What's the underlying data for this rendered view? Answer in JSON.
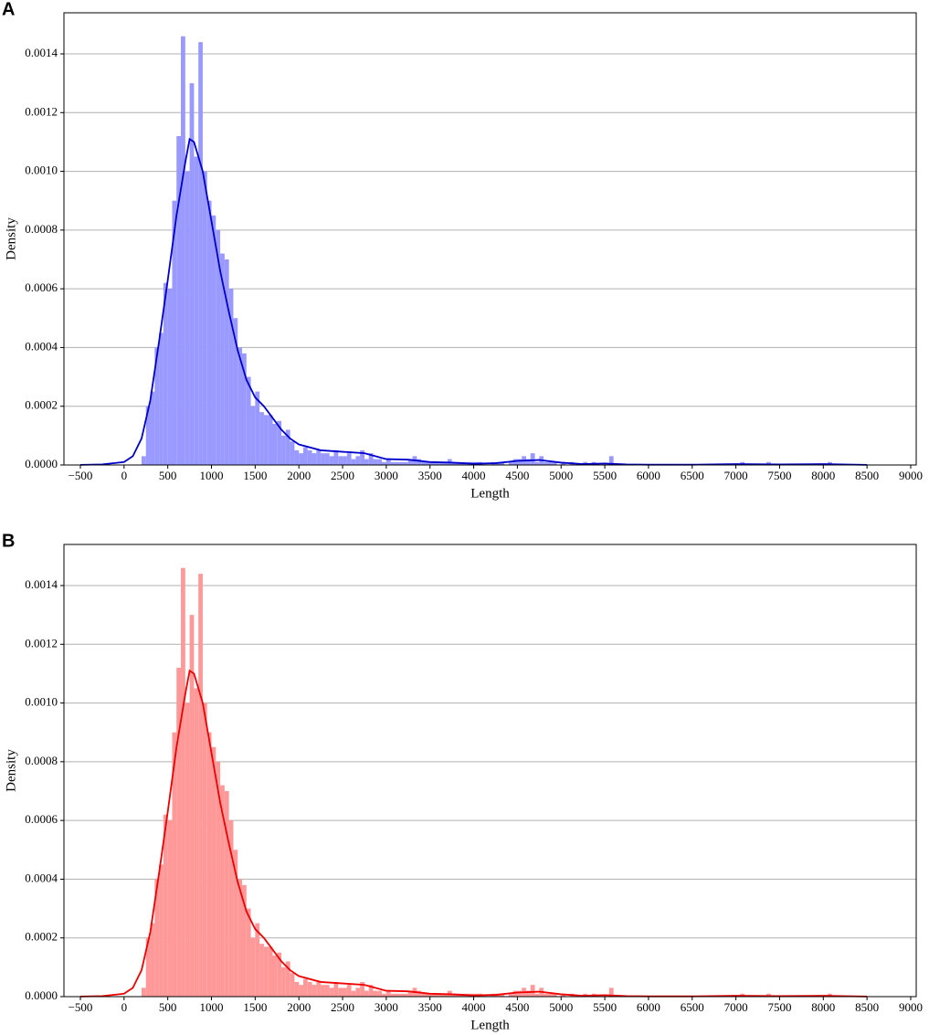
{
  "chart_data": [
    {
      "type": "histogram",
      "panel_label": "A",
      "x_label": "Length",
      "y_label": "Density",
      "color": "#9999ff",
      "grid": "y",
      "bins": [
        200,
        250,
        300,
        350,
        400,
        450,
        500,
        550,
        600,
        650,
        700,
        750,
        800,
        850,
        900,
        950,
        1000,
        1050,
        1100,
        1150,
        1200,
        1250,
        1300,
        1350,
        1400,
        1450,
        1500,
        1550,
        1600,
        1650,
        1700,
        1750,
        1800,
        1850,
        1900,
        1950,
        2000,
        2050,
        2100,
        2150,
        2200,
        2250,
        2300,
        2350,
        2400,
        2450,
        2500,
        2550,
        2600,
        2650,
        2700,
        2750,
        2800,
        2850,
        2900,
        2950,
        3000,
        3050,
        3100,
        3150,
        3200,
        3250,
        3300,
        3350,
        3400,
        3450,
        3500,
        3550,
        3600,
        3650,
        3700,
        3750,
        3800,
        3850,
        3900,
        3950,
        4000,
        4050,
        4100,
        4150,
        4200,
        4250,
        4300,
        4350,
        4400,
        4450,
        4500,
        4550,
        4600,
        4650,
        4700,
        4750,
        4800,
        4850,
        4900,
        4950,
        5000,
        5050,
        5100,
        5150,
        5200,
        5250,
        5300,
        5350,
        5400,
        5450,
        5500,
        5550,
        5600,
        5650,
        5700,
        5750,
        5800,
        5850,
        5900,
        5950,
        6000,
        6050,
        6100,
        6150,
        6200,
        6250,
        6300,
        6350,
        6400,
        6450,
        6500,
        6550,
        6600,
        6650,
        6700,
        6750,
        6800,
        6850,
        6900,
        6950,
        7000,
        7050,
        7100,
        7150,
        7200,
        7250,
        7300,
        7350,
        7400,
        7450,
        7500,
        7550,
        7600,
        7650,
        7700,
        7750,
        7800,
        7850,
        7900,
        7950,
        8000,
        8050,
        8100
      ],
      "values": [
        3e-05,
        0.0002,
        0.00025,
        0.0004,
        0.00045,
        0.00062,
        0.0006,
        0.0009,
        0.00112,
        0.00146,
        0.001,
        0.0013,
        0.00105,
        0.00144,
        0.001,
        0.0009,
        0.00085,
        0.0008,
        0.00072,
        0.0007,
        0.0006,
        0.0005,
        0.0004,
        0.00038,
        0.0003,
        0.0002,
        0.00025,
        0.00018,
        0.00017,
        0.00017,
        0.00014,
        0.00015,
        0.0001,
        0.00012,
        8e-05,
        5e-05,
        4e-05,
        6e-05,
        5e-05,
        4e-05,
        5e-05,
        4e-05,
        4e-05,
        3e-05,
        5e-05,
        3e-05,
        3e-05,
        4e-05,
        2e-05,
        3e-05,
        5e-05,
        2e-05,
        4e-05,
        2e-05,
        2e-05,
        1e-05,
        2e-05,
        1e-05,
        1e-05,
        1e-05,
        1e-05,
        2e-05,
        3e-05,
        2e-05,
        1e-05,
        1e-05,
        1e-05,
        1e-05,
        1e-05,
        1e-05,
        2e-05,
        1e-05,
        1e-05,
        1e-05,
        1e-05,
        1e-05,
        1e-05,
        1e-05,
        0,
        0,
        1e-05,
        1e-05,
        1e-05,
        0,
        1e-05,
        2e-05,
        2e-05,
        3e-05,
        2e-05,
        4e-05,
        1e-05,
        3e-05,
        1e-05,
        1e-05,
        1e-05,
        0,
        1e-05,
        0,
        1e-05,
        0,
        0,
        1e-05,
        0,
        1e-05,
        0,
        0,
        0,
        3e-05,
        0,
        0,
        0,
        0,
        0,
        0,
        0,
        0,
        0,
        0,
        0,
        0,
        0,
        0,
        0,
        0,
        0,
        0,
        0,
        0,
        0,
        0,
        0,
        0,
        0,
        0,
        0,
        0,
        0,
        1e-05,
        0,
        0,
        0,
        0,
        0,
        1e-05,
        0,
        0,
        0,
        0,
        0,
        0,
        0,
        0,
        0,
        0,
        0,
        0,
        0,
        1e-05
      ],
      "kde": {
        "color": "#0000cc",
        "x": [
          -500,
          -250,
          0,
          100,
          200,
          300,
          400,
          500,
          600,
          700,
          750,
          800,
          900,
          1000,
          1100,
          1200,
          1300,
          1400,
          1500,
          1600,
          1700,
          1800,
          1900,
          2000,
          2250,
          2500,
          2750,
          3000,
          3250,
          3500,
          3750,
          4000,
          4250,
          4500,
          4750,
          5000,
          5250,
          5500,
          5750,
          6000,
          6500,
          7000,
          7500,
          8000,
          8500
        ],
        "values": [
          5e-07,
          2e-06,
          1e-05,
          3e-05,
          9e-05,
          0.00022,
          0.00042,
          0.00063,
          0.00085,
          0.00103,
          0.00111,
          0.0011,
          0.001,
          0.00083,
          0.00066,
          0.00052,
          0.00039,
          0.00029,
          0.00023,
          0.0002,
          0.00016,
          0.00012,
          9e-05,
          7e-05,
          5e-05,
          4.5e-05,
          4e-05,
          2e-05,
          1.8e-05,
          1e-05,
          8e-06,
          4e-06,
          6e-06,
          1.4e-05,
          1.7e-05,
          8e-06,
          3e-06,
          5e-06,
          2e-06,
          1e-06,
          1e-06,
          3e-06,
          2e-06,
          3e-06,
          5e-07
        ]
      },
      "xlim": [
        -688,
        9063
      ],
      "ylim": [
        0,
        0.00154
      ],
      "xticks": [
        {
          "value": -500,
          "label": "−500"
        },
        0,
        500,
        1000,
        1500,
        2000,
        2500,
        3000,
        3500,
        4000,
        4500,
        5000,
        5500,
        6000,
        6500,
        7000,
        7500,
        8000,
        8500,
        9000
      ],
      "yticks": [
        {
          "value": 0,
          "label": "0.0000"
        },
        {
          "value": 0.0002,
          "label": "0.0002"
        },
        {
          "value": 0.0004,
          "label": "0.0004"
        },
        {
          "value": 0.0006,
          "label": "0.0006"
        },
        {
          "value": 0.0008,
          "label": "0.0008"
        },
        {
          "value": 0.001,
          "label": "0.0010"
        },
        {
          "value": 0.0012,
          "label": "0.0012"
        },
        {
          "value": 0.0014,
          "label": "0.0014"
        }
      ]
    },
    {
      "type": "histogram",
      "panel_label": "B",
      "x_label": "Length",
      "y_label": "Density",
      "color": "#ff9999",
      "grid": "y",
      "bins": [
        200,
        250,
        300,
        350,
        400,
        450,
        500,
        550,
        600,
        650,
        700,
        750,
        800,
        850,
        900,
        950,
        1000,
        1050,
        1100,
        1150,
        1200,
        1250,
        1300,
        1350,
        1400,
        1450,
        1500,
        1550,
        1600,
        1650,
        1700,
        1750,
        1800,
        1850,
        1900,
        1950,
        2000,
        2050,
        2100,
        2150,
        2200,
        2250,
        2300,
        2350,
        2400,
        2450,
        2500,
        2550,
        2600,
        2650,
        2700,
        2750,
        2800,
        2850,
        2900,
        2950,
        3000,
        3050,
        3100,
        3150,
        3200,
        3250,
        3300,
        3350,
        3400,
        3450,
        3500,
        3550,
        3600,
        3650,
        3700,
        3750,
        3800,
        3850,
        3900,
        3950,
        4000,
        4050,
        4100,
        4150,
        4200,
        4250,
        4300,
        4350,
        4400,
        4450,
        4500,
        4550,
        4600,
        4650,
        4700,
        4750,
        4800,
        4850,
        4900,
        4950,
        5000,
        5050,
        5100,
        5150,
        5200,
        5250,
        5300,
        5350,
        5400,
        5450,
        5500,
        5550,
        5600,
        5650,
        5700,
        5750,
        5800,
        5850,
        5900,
        5950,
        6000,
        6050,
        6100,
        6150,
        6200,
        6250,
        6300,
        6350,
        6400,
        6450,
        6500,
        6550,
        6600,
        6650,
        6700,
        6750,
        6800,
        6850,
        6900,
        6950,
        7000,
        7050,
        7100,
        7150,
        7200,
        7250,
        7300,
        7350,
        7400,
        7450,
        7500,
        7550,
        7600,
        7650,
        7700,
        7750,
        7800,
        7850,
        7900,
        7950,
        8000,
        8050,
        8100
      ],
      "values": [
        3e-05,
        0.0002,
        0.00025,
        0.0004,
        0.00045,
        0.00062,
        0.0006,
        0.0009,
        0.00112,
        0.00146,
        0.001,
        0.0013,
        0.00105,
        0.00144,
        0.001,
        0.0009,
        0.00085,
        0.0008,
        0.00072,
        0.0007,
        0.0006,
        0.0005,
        0.0004,
        0.00038,
        0.0003,
        0.0002,
        0.00025,
        0.00018,
        0.00017,
        0.00017,
        0.00014,
        0.00015,
        0.0001,
        0.00012,
        8e-05,
        5e-05,
        4e-05,
        6e-05,
        5e-05,
        4e-05,
        5e-05,
        4e-05,
        4e-05,
        3e-05,
        5e-05,
        3e-05,
        3e-05,
        4e-05,
        2e-05,
        3e-05,
        5e-05,
        2e-05,
        4e-05,
        2e-05,
        2e-05,
        1e-05,
        2e-05,
        1e-05,
        1e-05,
        1e-05,
        1e-05,
        2e-05,
        3e-05,
        2e-05,
        1e-05,
        1e-05,
        1e-05,
        1e-05,
        1e-05,
        1e-05,
        2e-05,
        1e-05,
        1e-05,
        1e-05,
        1e-05,
        1e-05,
        1e-05,
        1e-05,
        0,
        0,
        1e-05,
        1e-05,
        1e-05,
        0,
        1e-05,
        2e-05,
        2e-05,
        3e-05,
        2e-05,
        4e-05,
        1e-05,
        3e-05,
        1e-05,
        1e-05,
        1e-05,
        0,
        1e-05,
        0,
        1e-05,
        0,
        0,
        1e-05,
        0,
        1e-05,
        0,
        0,
        0,
        3e-05,
        0,
        0,
        0,
        0,
        0,
        0,
        0,
        0,
        0,
        0,
        0,
        0,
        0,
        0,
        0,
        0,
        0,
        0,
        0,
        0,
        0,
        0,
        0,
        0,
        0,
        0,
        0,
        0,
        0,
        1e-05,
        0,
        0,
        0,
        0,
        0,
        1e-05,
        0,
        0,
        0,
        0,
        0,
        0,
        0,
        0,
        0,
        0,
        0,
        0,
        0,
        1e-05
      ],
      "kde": {
        "color": "#ee0000",
        "x": [
          -500,
          -250,
          0,
          100,
          200,
          300,
          400,
          500,
          600,
          700,
          750,
          800,
          900,
          1000,
          1100,
          1200,
          1300,
          1400,
          1500,
          1600,
          1700,
          1800,
          1900,
          2000,
          2250,
          2500,
          2750,
          3000,
          3250,
          3500,
          3750,
          4000,
          4250,
          4500,
          4750,
          5000,
          5250,
          5500,
          5750,
          6000,
          6500,
          7000,
          7500,
          8000,
          8500
        ],
        "values": [
          5e-07,
          2e-06,
          1e-05,
          3e-05,
          9e-05,
          0.00022,
          0.00042,
          0.00063,
          0.00085,
          0.00103,
          0.00111,
          0.0011,
          0.001,
          0.00083,
          0.00066,
          0.00052,
          0.00039,
          0.00029,
          0.00023,
          0.0002,
          0.00016,
          0.00012,
          9e-05,
          7e-05,
          5e-05,
          4.5e-05,
          4e-05,
          2e-05,
          1.8e-05,
          1e-05,
          8e-06,
          4e-06,
          6e-06,
          1.4e-05,
          1.7e-05,
          8e-06,
          3e-06,
          5e-06,
          2e-06,
          1e-06,
          1e-06,
          3e-06,
          2e-06,
          3e-06,
          5e-07
        ]
      },
      "xlim": [
        -688,
        9063
      ],
      "ylim": [
        0,
        0.00154
      ],
      "xticks": [
        {
          "value": -500,
          "label": "−500"
        },
        0,
        500,
        1000,
        1500,
        2000,
        2500,
        3000,
        3500,
        4000,
        4500,
        5000,
        5500,
        6000,
        6500,
        7000,
        7500,
        8000,
        8500,
        9000
      ],
      "yticks": [
        {
          "value": 0,
          "label": "0.0000"
        },
        {
          "value": 0.0002,
          "label": "0.0002"
        },
        {
          "value": 0.0004,
          "label": "0.0004"
        },
        {
          "value": 0.0006,
          "label": "0.0006"
        },
        {
          "value": 0.0008,
          "label": "0.0008"
        },
        {
          "value": 0.001,
          "label": "0.0010"
        },
        {
          "value": 0.0012,
          "label": "0.0012"
        },
        {
          "value": 0.0014,
          "label": "0.0014"
        }
      ]
    }
  ]
}
